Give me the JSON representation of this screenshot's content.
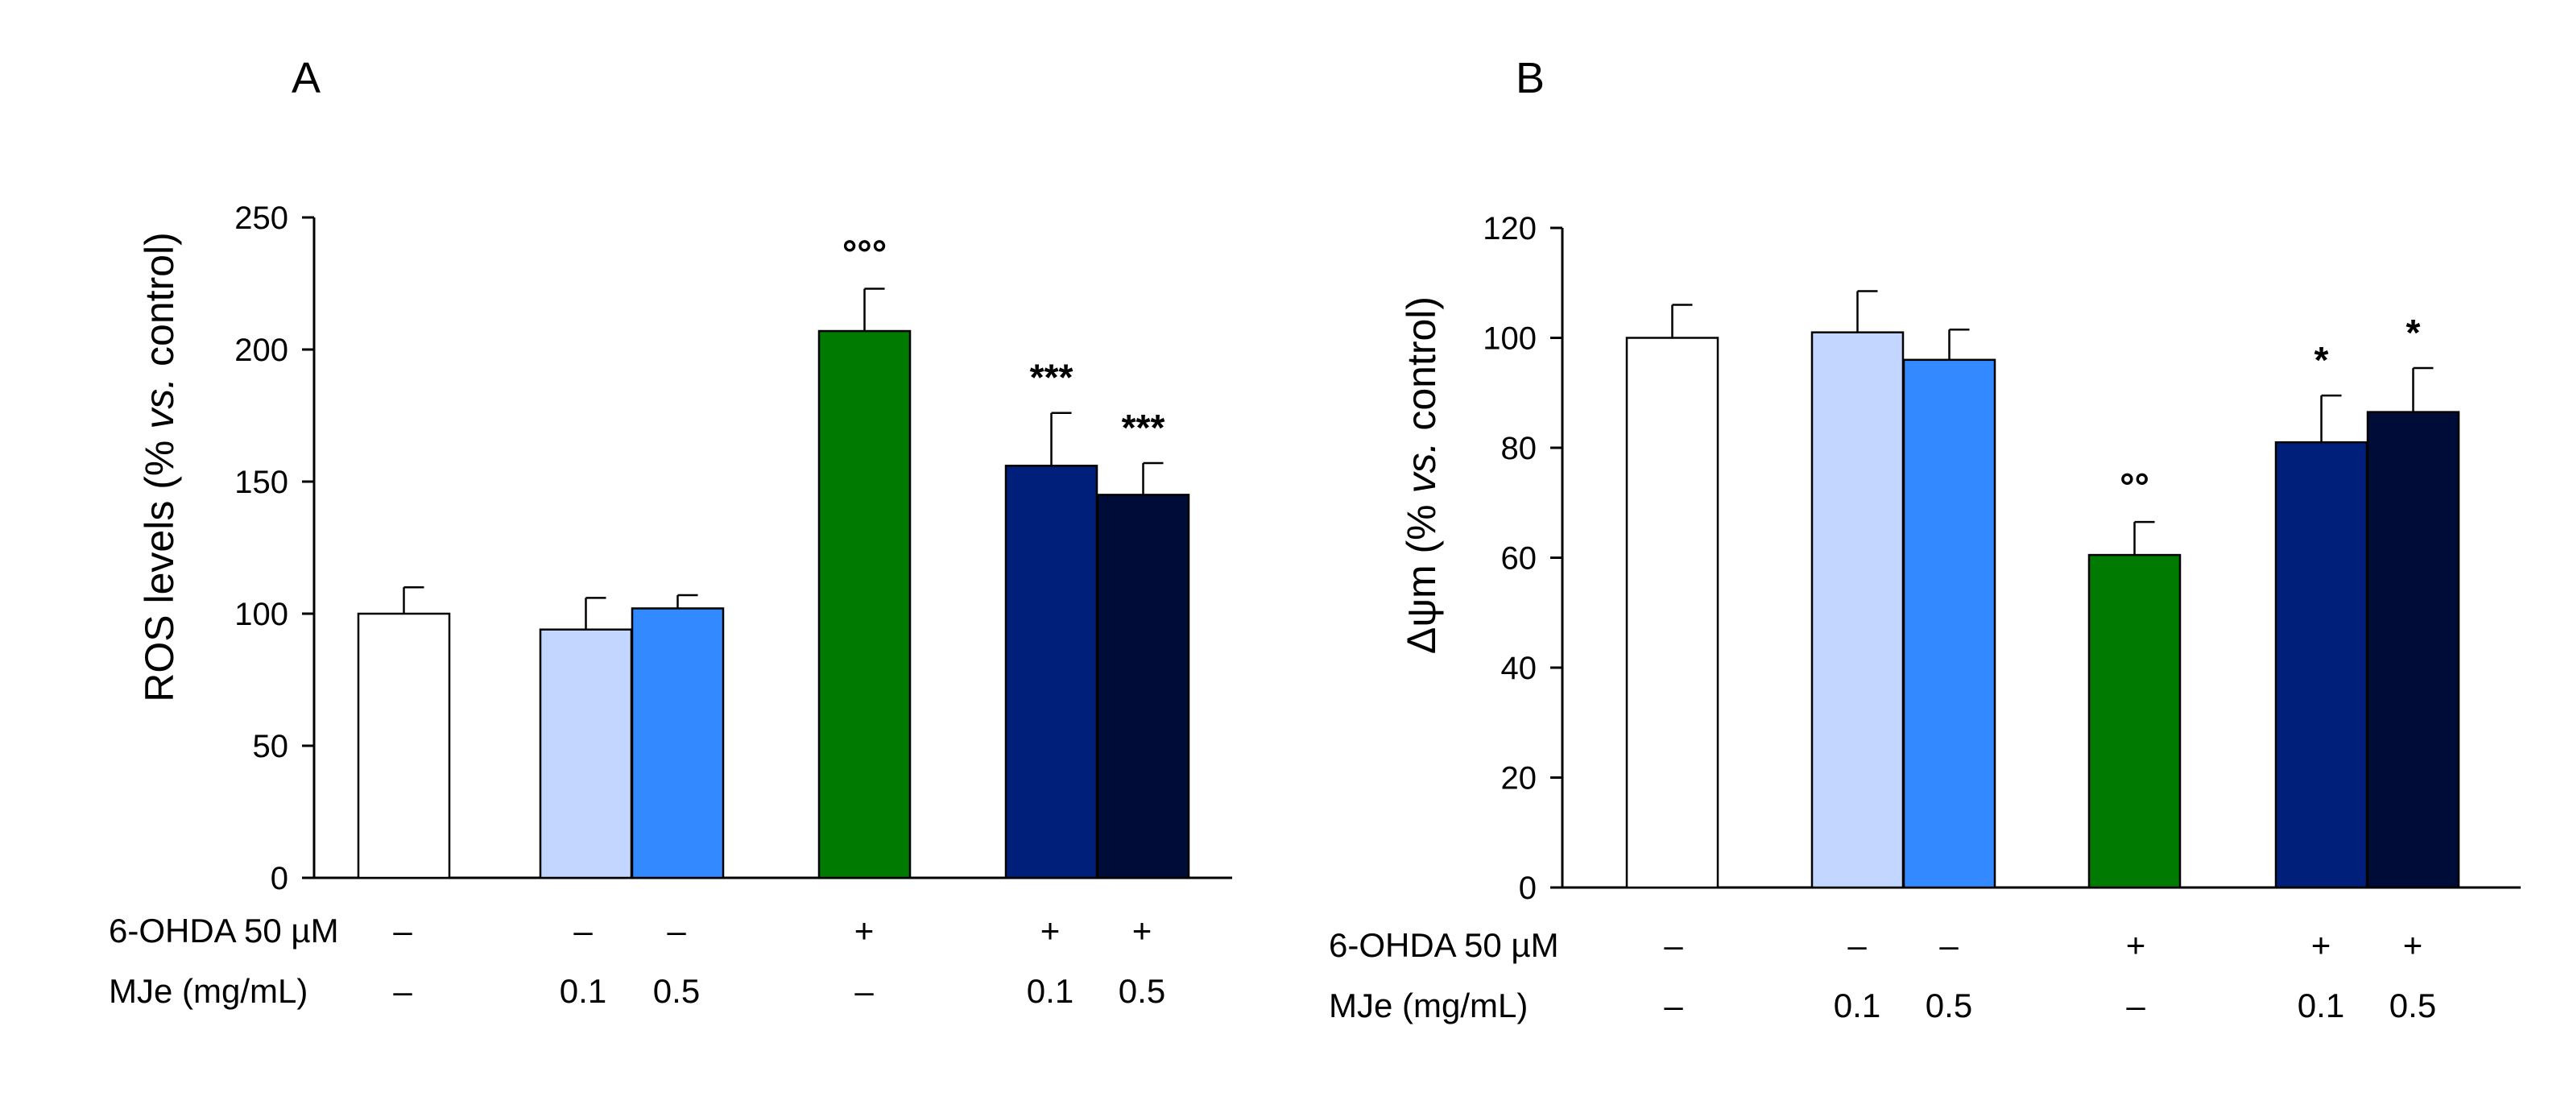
{
  "chart_data": [
    {
      "panel_label": "A",
      "type": "bar",
      "ylabel_main": "ROS levels (% ",
      "ylabel_italic": "vs.",
      "ylabel_end": " control)",
      "ylim": [
        0,
        250
      ],
      "yticks": [
        "0",
        "50",
        "100",
        "150",
        "200",
        "250"
      ],
      "bars": [
        {
          "value": 100,
          "error": 10,
          "color": "#ffffff",
          "annotation": ""
        },
        {
          "value": 94,
          "error": 12,
          "color": "#c2d6ff",
          "annotation": ""
        },
        {
          "value": 102,
          "error": 5,
          "color": "#3389ff",
          "annotation": ""
        },
        {
          "value": 207,
          "error": 16,
          "color": "#007a00",
          "annotation": "°°°"
        },
        {
          "value": 156,
          "error": 20,
          "color": "#001f7a",
          "annotation": "***"
        },
        {
          "value": 145,
          "error": 12,
          "color": "#000c38",
          "annotation": "***"
        }
      ],
      "rows": [
        {
          "label": "6-OHDA 50 µM",
          "values": [
            "–",
            "–",
            "–",
            "+",
            "+",
            "+"
          ]
        },
        {
          "label": "MJe (mg/mL)",
          "values": [
            "–",
            "0.1",
            "0.5",
            "–",
            "0.1",
            "0.5"
          ]
        }
      ]
    },
    {
      "panel_label": "B",
      "type": "bar",
      "ylabel_main": "Δψm (% ",
      "ylabel_italic": "vs.",
      "ylabel_end": " control)",
      "ylim": [
        0,
        120
      ],
      "yticks": [
        "0",
        "20",
        "40",
        "60",
        "80",
        "100",
        "120"
      ],
      "bars": [
        {
          "value": 100,
          "error": 6,
          "color": "#ffffff",
          "annotation": ""
        },
        {
          "value": 101,
          "error": 7.5,
          "color": "#c2d6ff",
          "annotation": ""
        },
        {
          "value": 96,
          "error": 5.5,
          "color": "#3389ff",
          "annotation": ""
        },
        {
          "value": 60.5,
          "error": 6,
          "color": "#007a00",
          "annotation": "°°"
        },
        {
          "value": 81,
          "error": 8.5,
          "color": "#001f7a",
          "annotation": "*"
        },
        {
          "value": 86.5,
          "error": 8,
          "color": "#000c38",
          "annotation": "*"
        }
      ],
      "rows": [
        {
          "label": "6-OHDA 50 µM",
          "values": [
            "–",
            "–",
            "–",
            "+",
            "+",
            "+"
          ]
        },
        {
          "label": "MJe (mg/mL)",
          "values": [
            "–",
            "0.1",
            "0.5",
            "–",
            "0.1",
            "0.5"
          ]
        }
      ]
    }
  ]
}
